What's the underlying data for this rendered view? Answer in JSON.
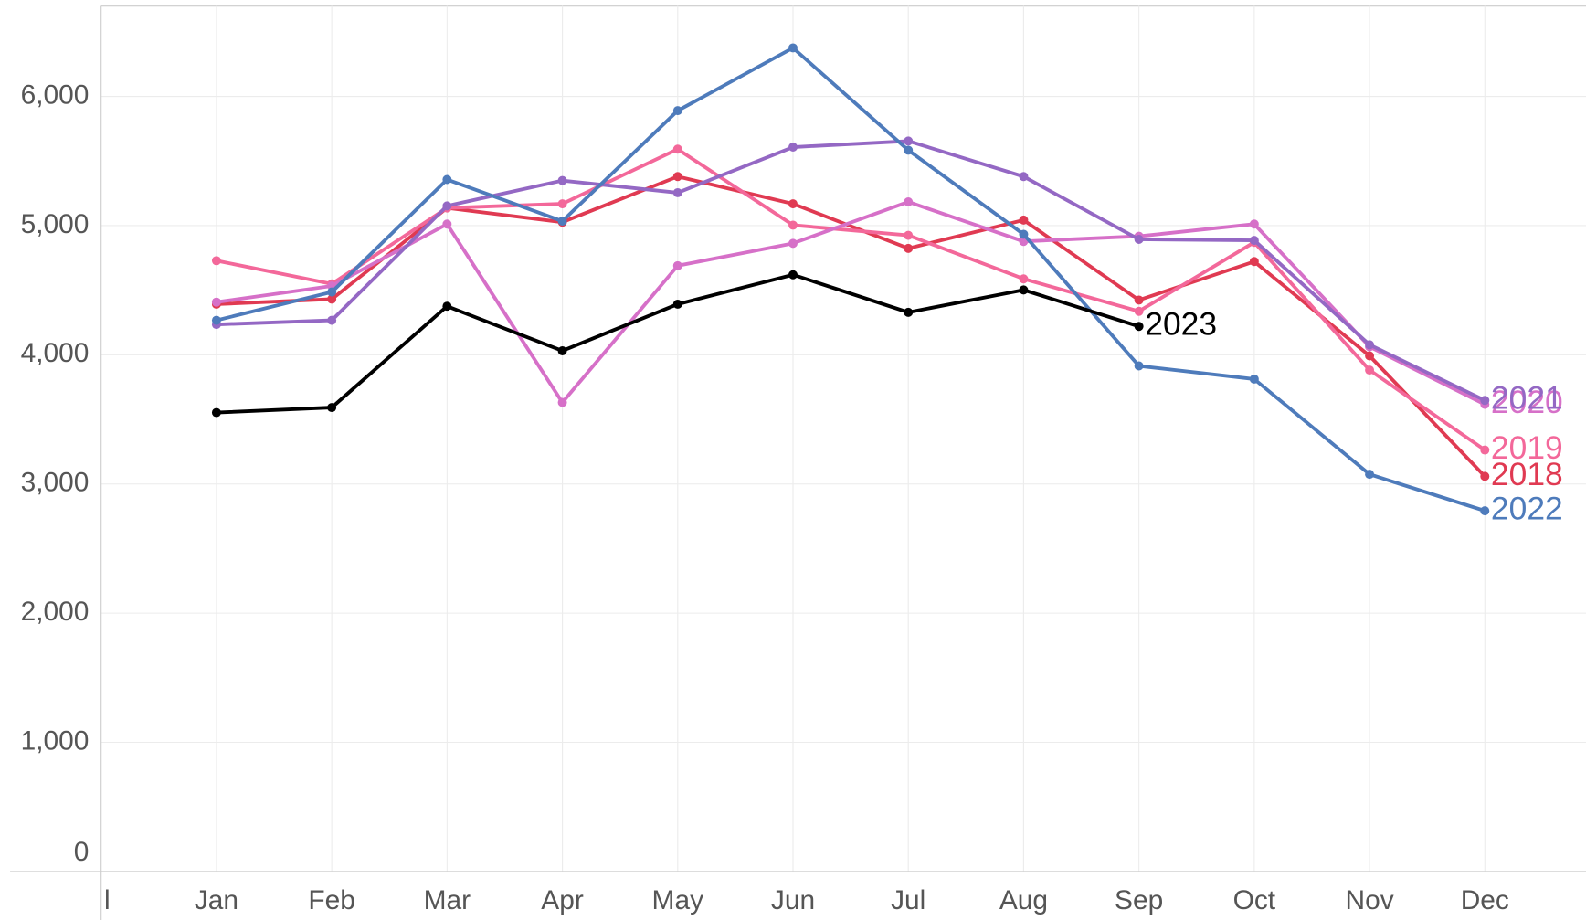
{
  "chart_data": {
    "type": "line",
    "categories": [
      "l",
      "Jan",
      "Feb",
      "Mar",
      "Apr",
      "May",
      "Jun",
      "Jul",
      "Aug",
      "Sep",
      "Oct",
      "Nov",
      "Dec"
    ],
    "series": [
      {
        "name": "2018",
        "color": "#e03a52",
        "values": [
          null,
          4392,
          4431,
          5137,
          5027,
          5380,
          5169,
          4824,
          5043,
          4424,
          4722,
          3992,
          3059
        ]
      },
      {
        "name": "2019",
        "color": "#f3689a",
        "values": [
          null,
          4729,
          4549,
          5137,
          5169,
          5592,
          5004,
          4925,
          4588,
          4337,
          4871,
          3882,
          3263
        ]
      },
      {
        "name": "2020",
        "color": "#d670c8",
        "values": [
          null,
          4408,
          4533,
          5012,
          3631,
          4690,
          4863,
          5184,
          4878,
          4918,
          5012,
          4063,
          3616
        ]
      },
      {
        "name": "2021",
        "color": "#9468c4",
        "values": [
          null,
          4235,
          4267,
          5153,
          5349,
          5255,
          5608,
          5655,
          5380,
          4894,
          4886,
          4078,
          3647
        ]
      },
      {
        "name": "2022",
        "color": "#4e7bbb",
        "values": [
          null,
          4267,
          4486,
          5357,
          5035,
          5890,
          6376,
          5584,
          4933,
          3914,
          3812,
          3075,
          2792
        ]
      },
      {
        "name": "2023",
        "color": "#000000",
        "values": [
          null,
          3553,
          3592,
          4376,
          4031,
          4392,
          4620,
          4329,
          4502,
          4220,
          null,
          null,
          null
        ]
      }
    ],
    "ylim": [
      0,
      6700
    ],
    "yticks": [
      0,
      {
        "value": 1000,
        "label": "1,000"
      },
      {
        "value": 2000,
        "label": "2,000"
      },
      {
        "value": 3000,
        "label": "3,000"
      },
      {
        "value": 4000,
        "label": "4,000"
      },
      {
        "value": 5000,
        "label": "5,000"
      },
      {
        "value": 6000,
        "label": "6,000"
      }
    ],
    "grid": true
  }
}
